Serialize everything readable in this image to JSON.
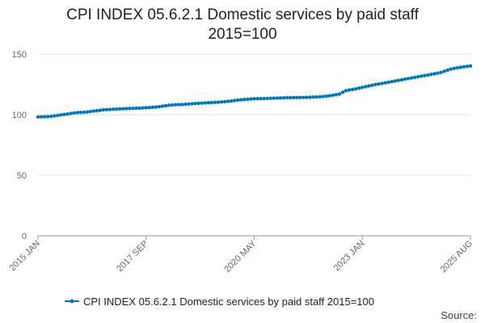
{
  "chart_data": {
    "type": "line",
    "title_line1": "CPI INDEX 05.6.2.1 Domestic services by paid staff",
    "title_line2": "2015=100",
    "x_tick_labels": [
      "2015 JAN",
      "2017 SEP",
      "2020 MAY",
      "2023 JAN",
      "2025 AUG"
    ],
    "y_tick_labels": [
      "0",
      "50",
      "100",
      "150"
    ],
    "ylim": [
      0,
      150
    ],
    "grid": true,
    "legend_position": "bottom",
    "series_color": "#0077b6",
    "series": [
      {
        "name": "CPI INDEX 05.6.2.1 Domestic services by paid staff 2015=100",
        "values": [
          98.1,
          98.2,
          98.3,
          98.4,
          98.6,
          99.0,
          99.4,
          99.8,
          100.2,
          100.5,
          101.0,
          101.4,
          101.7,
          101.9,
          102.0,
          102.2,
          102.6,
          103.0,
          103.3,
          103.6,
          104.0,
          104.2,
          104.3,
          104.5,
          104.6,
          104.8,
          104.9,
          105.0,
          105.1,
          105.2,
          105.3,
          105.4,
          105.6,
          105.7,
          105.9,
          106.1,
          106.3,
          106.6,
          107.0,
          107.4,
          107.8,
          108.0,
          108.2,
          108.3,
          108.4,
          108.6,
          108.8,
          109.0,
          109.2,
          109.4,
          109.5,
          109.7,
          109.9,
          110.0,
          110.1,
          110.3,
          110.5,
          110.7,
          111.0,
          111.3,
          111.7,
          112.0,
          112.3,
          112.5,
          112.7,
          113.0,
          113.1,
          113.2,
          113.2,
          113.3,
          113.4,
          113.5,
          113.6,
          113.7,
          113.8,
          113.9,
          114.0,
          114.0,
          114.1,
          114.1,
          114.2,
          114.2,
          114.3,
          114.4,
          114.5,
          114.6,
          114.7,
          115.0,
          115.3,
          115.6,
          116.0,
          116.5,
          117.0,
          118.5,
          119.8,
          120.4,
          120.8,
          121.3,
          121.9,
          122.5,
          123.1,
          123.7,
          124.3,
          124.9,
          125.4,
          125.8,
          126.3,
          126.8,
          127.3,
          127.8,
          128.3,
          128.8,
          129.3,
          129.8,
          130.3,
          130.8,
          131.3,
          131.8,
          132.3,
          132.8,
          133.3,
          133.8,
          134.3,
          134.9,
          135.8,
          136.8,
          137.6,
          138.2,
          138.7,
          139.1,
          139.5,
          139.9,
          140.2
        ]
      }
    ]
  },
  "footer": {
    "source_label": "Source:"
  }
}
